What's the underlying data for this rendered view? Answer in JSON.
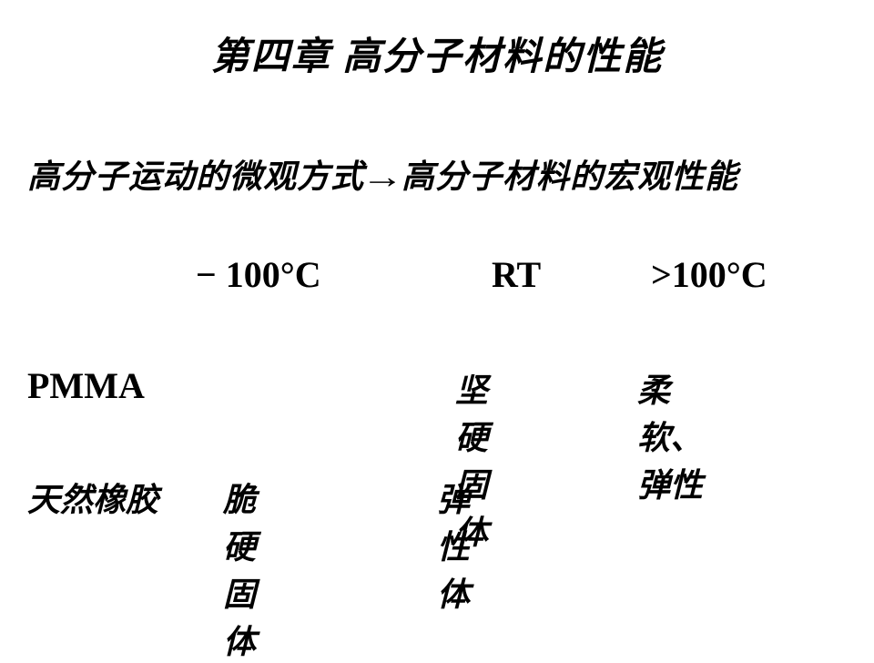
{
  "title": "第四章 高分子材料的性能",
  "subtitle_part1": "高分子运动的微观方式",
  "subtitle_arrow": "→",
  "subtitle_part2": "高分子材料的宏观性能",
  "headers": {
    "col1": "100°C",
    "col1_prefix": "−",
    "col2": "RT",
    "col3": ">100°C"
  },
  "rows": {
    "pmma": {
      "label": "PMMA",
      "col2": "坚硬固体",
      "col3": "柔软、弹性"
    },
    "rubber": {
      "label": "天然橡胶",
      "col1": "脆硬固体",
      "col2": "弹性体"
    }
  }
}
